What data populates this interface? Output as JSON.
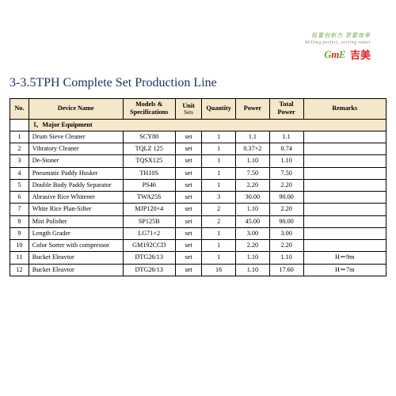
{
  "branding": {
    "tagline_cn": "既要创新力 更要效率",
    "tagline_en": "Milling perfect, sorting smart",
    "brand_en_g": "G",
    "brand_en_m": "m",
    "brand_en_e": "E",
    "brand_cn": "吉美"
  },
  "title": "3-3.5TPH Complete Set Production Line",
  "columns": {
    "no": "No.",
    "device": "Device Name",
    "model": "Models & Specifications",
    "unit": "Unit",
    "unit_sub": "Sets",
    "qty": "Quantity",
    "power": "Power",
    "tpower": "Total Power",
    "remarks": "Remarks"
  },
  "section1": "Ⅰ、Major Equipment",
  "rows": [
    {
      "no": "1",
      "device": "Drum Sieve Cleaner",
      "model": "SCY80",
      "unit": "set",
      "qty": "1",
      "power": "1.1",
      "tpower": "1.1",
      "remarks": ""
    },
    {
      "no": "2",
      "device": "Vibratory Cleaner",
      "model": "TQLZ 125",
      "unit": "set",
      "qty": "1",
      "power": "0.37×2",
      "tpower": "0.74",
      "remarks": ""
    },
    {
      "no": "3",
      "device": "De-Stoner",
      "model": "TQSX125",
      "unit": "set",
      "qty": "1",
      "power": "1.10",
      "tpower": "1.10",
      "remarks": ""
    },
    {
      "no": "4",
      "device": "Pneumatic Paddy Husker",
      "model": "TH10S",
      "unit": "set",
      "qty": "1",
      "power": "7.50",
      "tpower": "7.50",
      "remarks": ""
    },
    {
      "no": "5",
      "device": "Double Body Paddy Separator",
      "model": "PS46",
      "unit": "set",
      "qty": "1",
      "power": "2.20",
      "tpower": "2.20",
      "remarks": ""
    },
    {
      "no": "6",
      "device": "Abrasive Rice Whitener",
      "model": "TWA25S",
      "unit": "set",
      "qty": "3",
      "power": "30.00",
      "tpower": "90.00",
      "remarks": ""
    },
    {
      "no": "7",
      "device": "White Rice Plan-Sifter",
      "model": "MJP120×4",
      "unit": "set",
      "qty": "2",
      "power": "1.10",
      "tpower": "2.20",
      "remarks": ""
    },
    {
      "no": "8",
      "device": "Mist Polisher",
      "model": "SP125B",
      "unit": "set",
      "qty": "2",
      "power": "45.00",
      "tpower": "90.00",
      "remarks": ""
    },
    {
      "no": "9",
      "device": "Length Grader",
      "model": "LG71×2",
      "unit": "set",
      "qty": "1",
      "power": "3.00",
      "tpower": "3.00",
      "remarks": ""
    },
    {
      "no": "10",
      "device": "Color Sorter with compressor",
      "model": "GM192CCD",
      "unit": "set",
      "qty": "1",
      "power": "2.20",
      "tpower": "2.20",
      "remarks": ""
    },
    {
      "no": "11",
      "device": "Bucket Eleavtor",
      "model": "DTG26/13",
      "unit": "set",
      "qty": "1",
      "power": "1.10",
      "tpower": "1.10",
      "remarks": "H＝9m"
    },
    {
      "no": "12",
      "device": "Bucket Eleavtor",
      "model": "DTG26/13",
      "unit": "set",
      "qty": "16",
      "power": "1.10",
      "tpower": "17.60",
      "remarks": "H＝7m"
    }
  ],
  "style": {
    "header_bg": "#f5e7c9",
    "border_color": "#000000",
    "title_color": "#203160",
    "brand_green": "#6aa52a",
    "brand_red": "#d22222"
  }
}
